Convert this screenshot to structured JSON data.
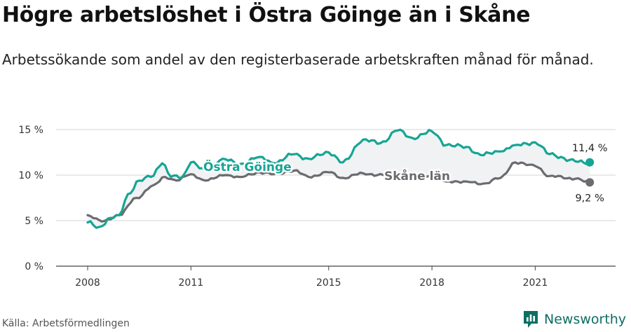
{
  "title": "Högre arbetslöshet i Östra Göinge än i Skåne",
  "subtitle": "Arbetssökande som andel av den registerbaserade arbetskraften månad för månad.",
  "source": "Källa: Arbetsförmedlingen",
  "brand": {
    "name": "Newsworthy",
    "icon": "newsworthy-logo-icon",
    "color": "#0d6e63"
  },
  "chart_data": {
    "type": "line",
    "x_start": "2008-01",
    "x_end": "2022-08",
    "xlim": [
      "2007-02",
      "2023-05"
    ],
    "ylim": [
      0,
      15
    ],
    "y_ticks": [
      {
        "value": 0,
        "label": "0 %"
      },
      {
        "value": 5,
        "label": "5 %"
      },
      {
        "value": 10,
        "label": "10 %"
      },
      {
        "value": 15,
        "label": "15 %"
      }
    ],
    "x_ticks": [
      {
        "value": "2008-01",
        "label": "2008"
      },
      {
        "value": "2011-01",
        "label": "2011"
      },
      {
        "value": "2015-01",
        "label": "2015"
      },
      {
        "value": "2018-01",
        "label": "2018"
      },
      {
        "value": "2021-01",
        "label": "2021"
      }
    ],
    "grid": "horizontal",
    "series": [
      {
        "name": "Östra Göinge",
        "color": "#16a594",
        "end_label": "11,4 %",
        "knots": [
          {
            "x": "2008-01",
            "y": 4.8
          },
          {
            "x": "2008-05",
            "y": 4.3
          },
          {
            "x": "2008-09",
            "y": 5.3
          },
          {
            "x": "2008-12",
            "y": 5.6
          },
          {
            "x": "2009-03",
            "y": 7.9
          },
          {
            "x": "2009-07",
            "y": 9.4
          },
          {
            "x": "2009-11",
            "y": 9.8
          },
          {
            "x": "2010-03",
            "y": 11.3
          },
          {
            "x": "2010-06",
            "y": 9.8
          },
          {
            "x": "2010-10",
            "y": 9.8
          },
          {
            "x": "2011-01",
            "y": 11.4
          },
          {
            "x": "2011-06",
            "y": 10.5
          },
          {
            "x": "2011-12",
            "y": 11.8
          },
          {
            "x": "2012-06",
            "y": 11.2
          },
          {
            "x": "2013-01",
            "y": 12.0
          },
          {
            "x": "2013-06",
            "y": 11.3
          },
          {
            "x": "2014-01",
            "y": 12.3
          },
          {
            "x": "2014-06",
            "y": 11.8
          },
          {
            "x": "2015-01",
            "y": 12.5
          },
          {
            "x": "2015-06",
            "y": 11.4
          },
          {
            "x": "2016-01",
            "y": 13.9
          },
          {
            "x": "2016-07",
            "y": 13.5
          },
          {
            "x": "2017-01",
            "y": 14.9
          },
          {
            "x": "2017-06",
            "y": 14.1
          },
          {
            "x": "2018-01",
            "y": 14.8
          },
          {
            "x": "2018-06",
            "y": 13.3
          },
          {
            "x": "2019-01",
            "y": 13.1
          },
          {
            "x": "2019-06",
            "y": 12.2
          },
          {
            "x": "2020-01",
            "y": 12.6
          },
          {
            "x": "2020-06",
            "y": 13.3
          },
          {
            "x": "2021-01",
            "y": 13.6
          },
          {
            "x": "2021-06",
            "y": 12.3
          },
          {
            "x": "2022-03",
            "y": 11.5
          },
          {
            "x": "2022-08",
            "y": 11.4
          }
        ]
      },
      {
        "name": "Skåne län",
        "color": "#6b6b70",
        "end_label": "9,2 %",
        "knots": [
          {
            "x": "2008-01",
            "y": 5.6
          },
          {
            "x": "2008-06",
            "y": 4.9
          },
          {
            "x": "2008-12",
            "y": 5.6
          },
          {
            "x": "2009-06",
            "y": 7.5
          },
          {
            "x": "2009-12",
            "y": 8.9
          },
          {
            "x": "2010-04",
            "y": 9.8
          },
          {
            "x": "2010-08",
            "y": 9.4
          },
          {
            "x": "2011-01",
            "y": 10.1
          },
          {
            "x": "2011-06",
            "y": 9.4
          },
          {
            "x": "2012-01",
            "y": 10.0
          },
          {
            "x": "2012-06",
            "y": 9.8
          },
          {
            "x": "2013-01",
            "y": 10.3
          },
          {
            "x": "2013-06",
            "y": 10.1
          },
          {
            "x": "2014-01",
            "y": 10.5
          },
          {
            "x": "2014-06",
            "y": 9.8
          },
          {
            "x": "2015-01",
            "y": 10.3
          },
          {
            "x": "2015-06",
            "y": 9.7
          },
          {
            "x": "2016-01",
            "y": 10.2
          },
          {
            "x": "2016-06",
            "y": 10.0
          },
          {
            "x": "2017-01",
            "y": 10.0
          },
          {
            "x": "2017-06",
            "y": 9.5
          },
          {
            "x": "2018-01",
            "y": 9.9
          },
          {
            "x": "2018-06",
            "y": 9.3
          },
          {
            "x": "2019-01",
            "y": 9.3
          },
          {
            "x": "2019-06",
            "y": 9.0
          },
          {
            "x": "2020-01",
            "y": 9.7
          },
          {
            "x": "2020-06",
            "y": 11.4
          },
          {
            "x": "2021-01",
            "y": 11.0
          },
          {
            "x": "2021-06",
            "y": 9.9
          },
          {
            "x": "2022-03",
            "y": 9.6
          },
          {
            "x": "2022-08",
            "y": 9.2
          }
        ]
      }
    ]
  }
}
